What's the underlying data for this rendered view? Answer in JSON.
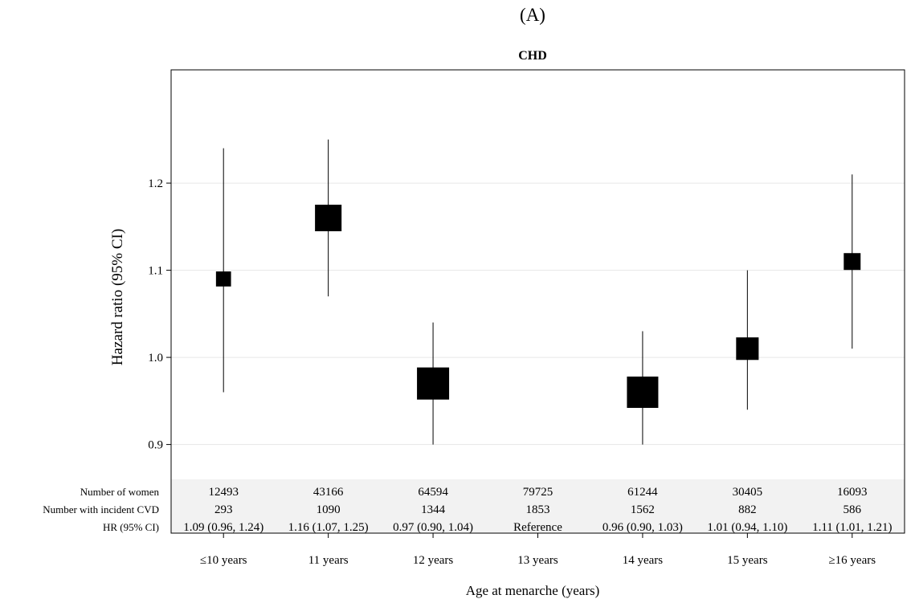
{
  "panel_label": "(A)",
  "chart_data": {
    "type": "scatter",
    "subtype": "forest-plot",
    "title": "CHD",
    "xlabel": "Age at menarche (years)",
    "ylabel": "Hazard ratio (95% CI)",
    "ylim": [
      0.86,
      1.33
    ],
    "yticks": [
      "0.9",
      "1.0",
      "1.1",
      "1.2"
    ],
    "ytick_values": [
      0.9,
      1.0,
      1.1,
      1.2
    ],
    "grid": true,
    "categories": [
      "≤10 years",
      "11 years",
      "12 years",
      "13 years",
      "14 years",
      "15 years",
      "≥16 years"
    ],
    "series": [
      {
        "hr": [
          1.09,
          1.16,
          0.97,
          null,
          0.96,
          1.01,
          1.11
        ],
        "ci_low": [
          0.96,
          1.07,
          0.9,
          null,
          0.9,
          0.94,
          1.01
        ],
        "ci_high": [
          1.24,
          1.25,
          1.04,
          null,
          1.03,
          1.1,
          1.21
        ],
        "marker_weight": [
          12493,
          43166,
          64594,
          null,
          61244,
          30405,
          16093
        ]
      }
    ],
    "table": {
      "rows": [
        {
          "label": "Number of women",
          "values": [
            "12493",
            "43166",
            "64594",
            "79725",
            "61244",
            "30405",
            "16093"
          ]
        },
        {
          "label": "Number with incident CVD",
          "values": [
            "293",
            "1090",
            "1344",
            "1853",
            "1562",
            "882",
            "586"
          ]
        },
        {
          "label": "HR (95% CI)",
          "values": [
            "1.09 (0.96, 1.24)",
            "1.16 (1.07, 1.25)",
            "0.97 (0.90, 1.04)",
            "Reference",
            "0.96 (0.90, 1.03)",
            "1.01 (0.94, 1.10)",
            "1.11 (1.01, 1.21)"
          ]
        }
      ]
    },
    "colors": {
      "marker": "#000000",
      "grid": "#e6e6e6",
      "table_bg": "#f2f2f2",
      "frame": "#000000"
    }
  }
}
